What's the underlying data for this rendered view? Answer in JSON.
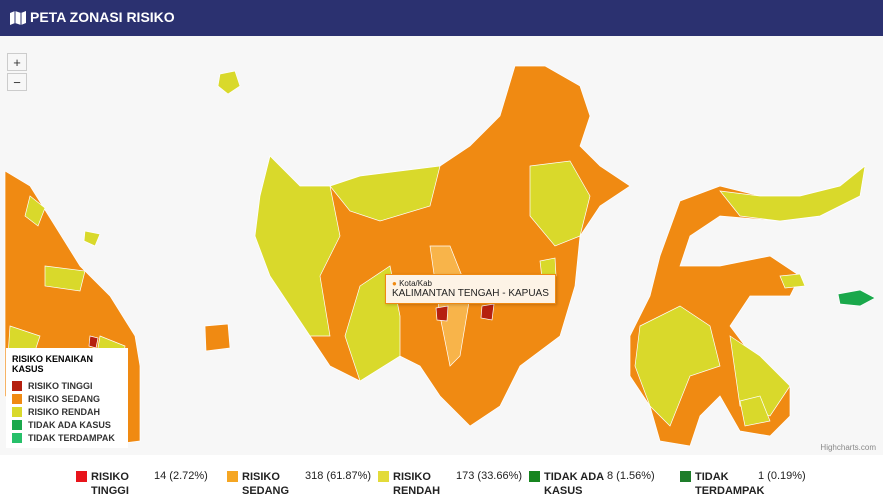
{
  "header": {
    "title": "PETA ZONASI RISIKO"
  },
  "zoom": {
    "in": "+",
    "out": "−"
  },
  "legend": {
    "title": "RISIKO KENAIKAN KASUS",
    "items": [
      {
        "label": "RISIKO TINGGI",
        "color": "#b5200f"
      },
      {
        "label": "RISIKO SEDANG",
        "color": "#f08a12"
      },
      {
        "label": "RISIKO RENDAH",
        "color": "#d9d92b"
      },
      {
        "label": "TIDAK ADA KASUS",
        "color": "#1aa84b"
      },
      {
        "label": "TIDAK TERDAMPAK",
        "color": "#27c06a"
      }
    ]
  },
  "tooltip": {
    "label": "Kota/Kab",
    "value": "KALIMANTAN TENGAH - KAPUAS"
  },
  "credit": "Highcharts.com",
  "summary": [
    {
      "label": "RISIKO TINGGI",
      "count": "14 (2.72%)",
      "color": "#e8141b"
    },
    {
      "label": "RISIKO SEDANG",
      "count": "318 (61.87%)",
      "color": "#f5a623"
    },
    {
      "label": "RISIKO RENDAH",
      "count": "173 (33.66%)",
      "color": "#e3db3a"
    },
    {
      "label": "TIDAK ADA KASUS",
      "count": "8 (1.56%)",
      "color": "#16851f"
    },
    {
      "label": "TIDAK TERDAMPAK",
      "count": "1 (0.19%)",
      "color": "#1e7d2a"
    }
  ]
}
